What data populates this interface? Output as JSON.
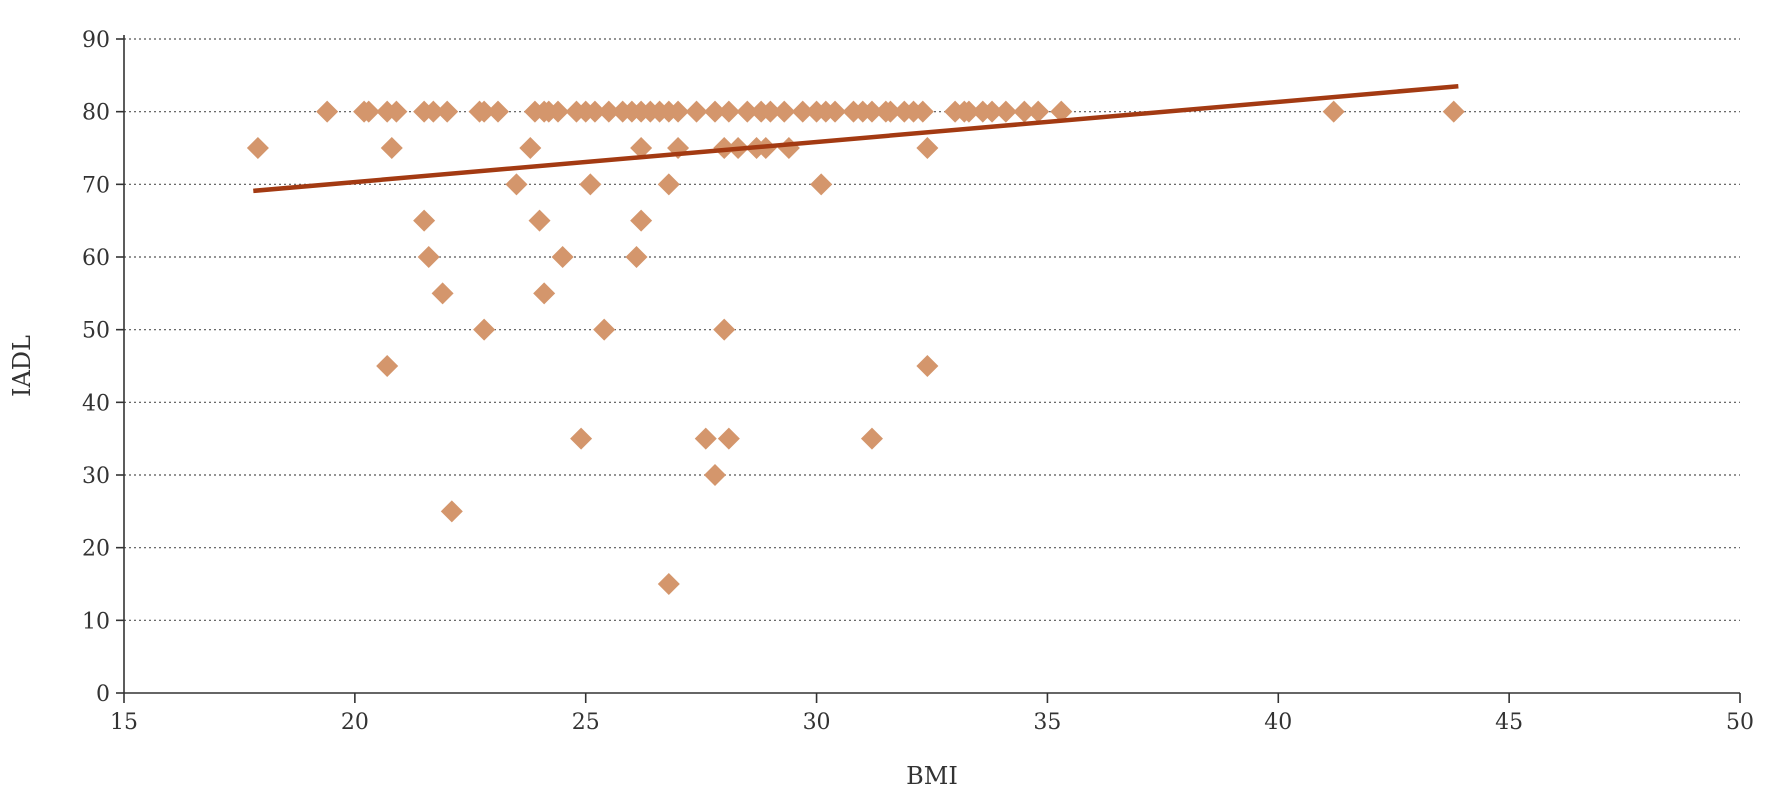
{
  "chart_data": {
    "type": "scatter",
    "xlabel": "BMI",
    "ylabel": "IADL",
    "xlim": [
      15,
      50
    ],
    "ylim": [
      0,
      90
    ],
    "xticks": [
      15,
      20,
      25,
      30,
      35,
      40,
      45,
      50
    ],
    "yticks": [
      0,
      10,
      20,
      30,
      40,
      50,
      60,
      70,
      80,
      90
    ],
    "grid": "horizontal-dotted",
    "legend": "none",
    "colors": {
      "points": "#D4966C",
      "trend": "#A33A12"
    },
    "points": [
      [
        17.9,
        75
      ],
      [
        19.4,
        80
      ],
      [
        20.2,
        80
      ],
      [
        20.3,
        80
      ],
      [
        20.7,
        80
      ],
      [
        20.9,
        80
      ],
      [
        20.8,
        75
      ],
      [
        20.7,
        45
      ],
      [
        21.5,
        80
      ],
      [
        21.7,
        80
      ],
      [
        22.0,
        80
      ],
      [
        21.5,
        65
      ],
      [
        21.6,
        60
      ],
      [
        21.9,
        55
      ],
      [
        22.1,
        25
      ],
      [
        22.7,
        80
      ],
      [
        22.8,
        80
      ],
      [
        23.1,
        80
      ],
      [
        22.8,
        50
      ],
      [
        23.5,
        70
      ],
      [
        23.8,
        75
      ],
      [
        23.9,
        80
      ],
      [
        24.1,
        80
      ],
      [
        24.2,
        80
      ],
      [
        24.4,
        80
      ],
      [
        24.0,
        65
      ],
      [
        24.1,
        55
      ],
      [
        24.5,
        60
      ],
      [
        24.8,
        80
      ],
      [
        25.0,
        80
      ],
      [
        25.2,
        80
      ],
      [
        25.1,
        70
      ],
      [
        24.9,
        35
      ],
      [
        25.4,
        50
      ],
      [
        25.5,
        80
      ],
      [
        25.8,
        80
      ],
      [
        26.0,
        80
      ],
      [
        26.2,
        80
      ],
      [
        26.4,
        80
      ],
      [
        26.6,
        80
      ],
      [
        26.2,
        75
      ],
      [
        26.2,
        65
      ],
      [
        26.1,
        60
      ],
      [
        26.8,
        80
      ],
      [
        27.0,
        80
      ],
      [
        27.0,
        75
      ],
      [
        26.8,
        70
      ],
      [
        26.8,
        15
      ],
      [
        27.4,
        80
      ],
      [
        27.8,
        80
      ],
      [
        28.1,
        80
      ],
      [
        28.0,
        75
      ],
      [
        28.3,
        75
      ],
      [
        27.6,
        35
      ],
      [
        27.8,
        30
      ],
      [
        28.0,
        50
      ],
      [
        28.1,
        35
      ],
      [
        28.5,
        80
      ],
      [
        28.8,
        80
      ],
      [
        29.0,
        80
      ],
      [
        28.7,
        75
      ],
      [
        28.9,
        75
      ],
      [
        29.3,
        80
      ],
      [
        29.4,
        75
      ],
      [
        29.7,
        80
      ],
      [
        30.0,
        80
      ],
      [
        30.2,
        80
      ],
      [
        30.4,
        80
      ],
      [
        30.1,
        70
      ],
      [
        30.8,
        80
      ],
      [
        31.0,
        80
      ],
      [
        31.2,
        80
      ],
      [
        31.5,
        80
      ],
      [
        31.6,
        80
      ],
      [
        31.2,
        35
      ],
      [
        31.9,
        80
      ],
      [
        32.1,
        80
      ],
      [
        32.3,
        80
      ],
      [
        32.4,
        75
      ],
      [
        32.4,
        45
      ],
      [
        33.0,
        80
      ],
      [
        33.2,
        80
      ],
      [
        33.3,
        80
      ],
      [
        33.6,
        80
      ],
      [
        33.8,
        80
      ],
      [
        34.1,
        80
      ],
      [
        34.5,
        80
      ],
      [
        34.8,
        80
      ],
      [
        35.3,
        80
      ],
      [
        41.2,
        80
      ],
      [
        43.8,
        80
      ]
    ],
    "trendline": {
      "x": [
        17.8,
        43.9
      ],
      "y": [
        69.1,
        83.5
      ]
    }
  }
}
